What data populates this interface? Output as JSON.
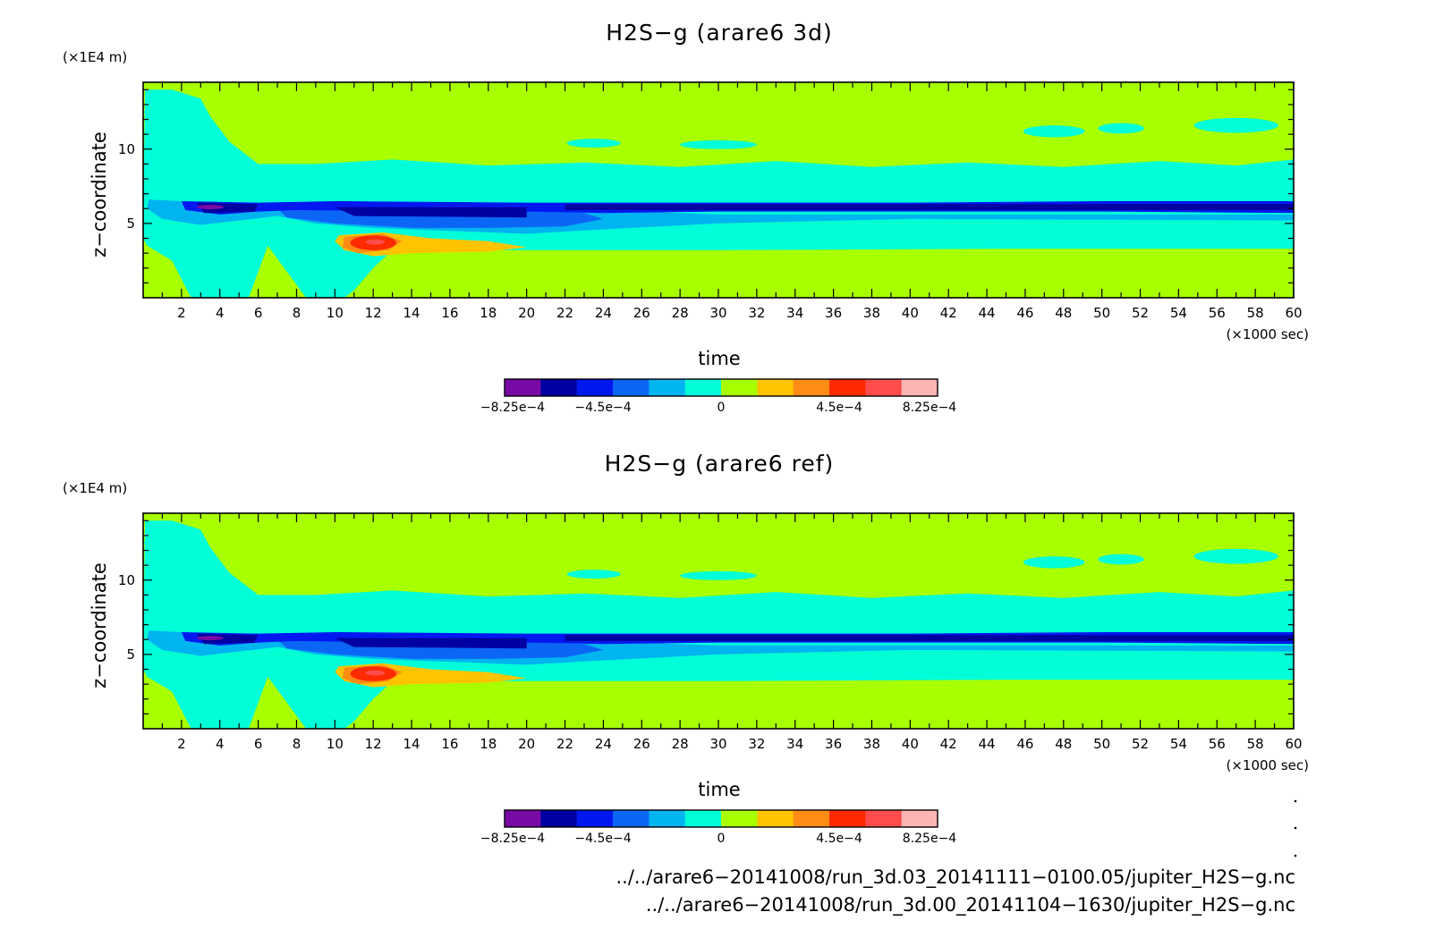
{
  "colormap": [
    "#7a0aa6",
    "#0000a0",
    "#0018f0",
    "#0c66f5",
    "#00b4f0",
    "#00ffd8",
    "#a8ff00",
    "#ffc400",
    "#ff8c14",
    "#ff2a00",
    "#ff4c4c",
    "#ffb4b4"
  ],
  "colorbar": {
    "ticks": [
      {
        "value": -0.000825,
        "label": "−8.25e−4"
      },
      {
        "value": -0.00045,
        "label": "−4.5e−4"
      },
      {
        "value": 0,
        "label": "0"
      },
      {
        "value": 0.00045,
        "label": "4.5e−4"
      },
      {
        "value": 0.000825,
        "label": "8.25e−4"
      }
    ]
  },
  "chart_data": [
    {
      "type": "heatmap",
      "title": "H2S−g (arare6 3d)",
      "xlabel": "time",
      "x_unit": "(×1000 sec)",
      "ylabel": "z−coordinate",
      "y_unit": "(×1E4 m)",
      "xlim": [
        0,
        60
      ],
      "ylim": [
        0,
        14.5
      ],
      "x_tick_labels": [
        "2",
        "4",
        "6",
        "8",
        "10",
        "12",
        "14",
        "16",
        "18",
        "20",
        "22",
        "24",
        "26",
        "28",
        "30",
        "32",
        "34",
        "36",
        "38",
        "40",
        "42",
        "44",
        "46",
        "48",
        "50",
        "52",
        "54",
        "56",
        "58",
        "60"
      ],
      "y_tick_labels": [
        "5",
        "10"
      ],
      "field": "H2S-g",
      "regions": [
        {
          "desc": "upper low-negative band",
          "x": [
            3,
            60
          ],
          "z": [
            6.5,
            9
          ],
          "value": -5e-05
        },
        {
          "desc": "strong negative layer near z=6",
          "x": [
            2,
            60
          ],
          "z": [
            5.7,
            6.4
          ],
          "value": -0.0006
        },
        {
          "desc": "negative plume",
          "x": [
            8,
            22
          ],
          "z": [
            4.3,
            5.7
          ],
          "value": -0.0003
        },
        {
          "desc": "positive plume",
          "x": [
            10,
            20
          ],
          "z": [
            2.8,
            4.3
          ],
          "value": 0.0003
        },
        {
          "desc": "positive maximum",
          "x": [
            11,
            13
          ],
          "z": [
            3.2,
            4
          ],
          "value": 0.0006
        }
      ]
    },
    {
      "type": "heatmap",
      "title": "H2S−g (arare6 ref)",
      "xlabel": "time",
      "x_unit": "(×1000 sec)",
      "ylabel": "z−coordinate",
      "y_unit": "(×1E4 m)",
      "xlim": [
        0,
        60
      ],
      "ylim": [
        0,
        14.5
      ],
      "x_tick_labels": [
        "2",
        "4",
        "6",
        "8",
        "10",
        "12",
        "14",
        "16",
        "18",
        "20",
        "22",
        "24",
        "26",
        "28",
        "30",
        "32",
        "34",
        "36",
        "38",
        "40",
        "42",
        "44",
        "46",
        "48",
        "50",
        "52",
        "54",
        "56",
        "58",
        "60"
      ],
      "y_tick_labels": [
        "5",
        "10"
      ],
      "field": "H2S-g",
      "regions": [
        {
          "desc": "upper low-negative band",
          "x": [
            3,
            60
          ],
          "z": [
            6.5,
            9
          ],
          "value": -5e-05
        },
        {
          "desc": "strong negative layer near z=6",
          "x": [
            2,
            60
          ],
          "z": [
            5.7,
            6.4
          ],
          "value": -0.0006
        },
        {
          "desc": "negative plume",
          "x": [
            8,
            22
          ],
          "z": [
            4.3,
            5.7
          ],
          "value": -0.0003
        },
        {
          "desc": "positive plume",
          "x": [
            10,
            20
          ],
          "z": [
            2.8,
            4.3
          ],
          "value": 0.0003
        },
        {
          "desc": "positive maximum",
          "x": [
            11,
            13
          ],
          "z": [
            3.2,
            4
          ],
          "value": 0.0006
        }
      ]
    }
  ],
  "files": [
    "../../arare6−20141008/run_3d.03_20141111−0100.05/jupiter_H2S−g.nc",
    "../../arare6−20141008/run_3d.00_20141104−1630/jupiter_H2S−g.nc"
  ]
}
